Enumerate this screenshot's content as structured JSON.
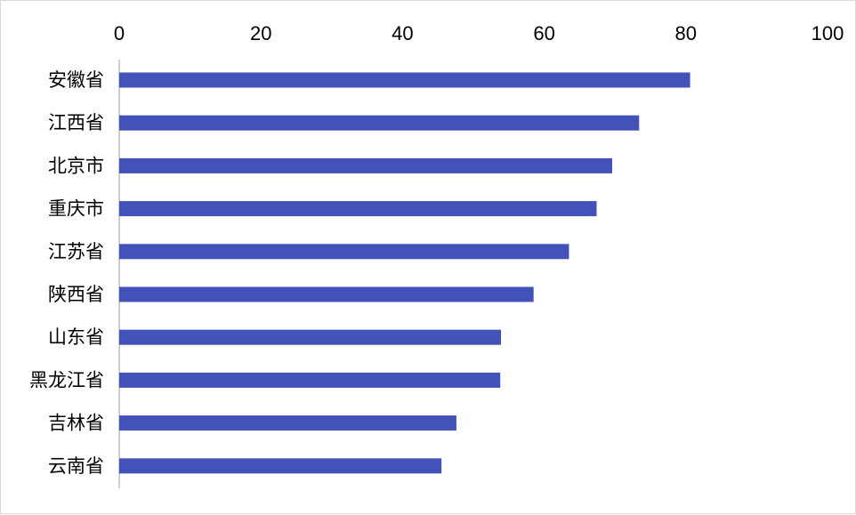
{
  "chart_data": {
    "type": "bar",
    "orientation": "horizontal",
    "categories": [
      "安徽省",
      "江西省",
      "北京市",
      "重庆市",
      "江苏省",
      "陕西省",
      "山东省",
      "黑龙江省",
      "吉林省",
      "云南省"
    ],
    "values": [
      80.6,
      73.4,
      69.6,
      67.4,
      63.5,
      58.5,
      53.9,
      53.8,
      47.6,
      45.5
    ],
    "xlim": [
      0,
      100
    ],
    "xticks": [
      "0",
      "20",
      "40",
      "60",
      "80",
      "100"
    ],
    "x_axis_position": "top",
    "grid": false,
    "legend": "none",
    "bar_color": "#4352b8"
  }
}
